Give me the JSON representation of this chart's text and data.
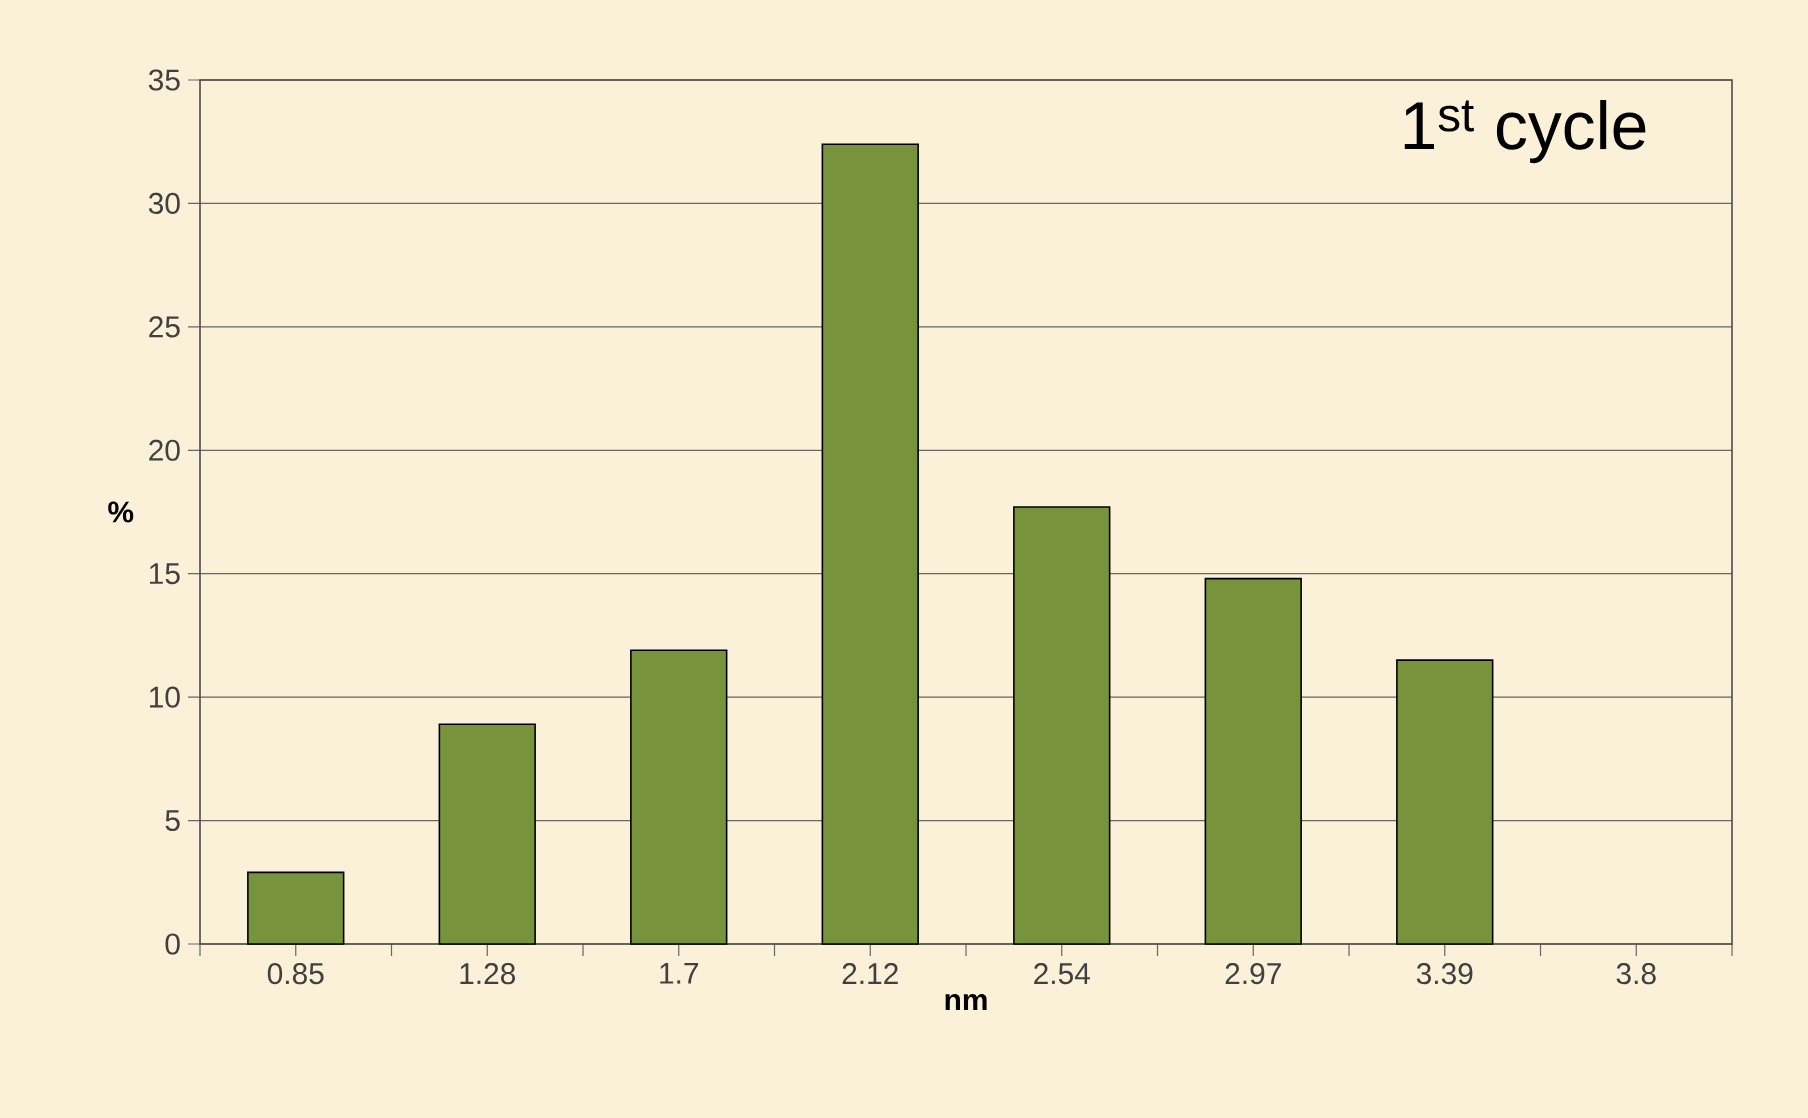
{
  "chart_data": {
    "type": "bar",
    "categories": [
      "0.85",
      "1.28",
      "1.7",
      "2.12",
      "2.54",
      "2.97",
      "3.39",
      "3.8"
    ],
    "values": [
      2.9,
      8.9,
      11.9,
      32.4,
      17.7,
      14.8,
      11.5,
      null
    ],
    "color": "#77933c",
    "xlabel": "nm",
    "ylabel": "%",
    "ylim": [
      0,
      35
    ],
    "yticks": [
      0,
      5,
      10,
      15,
      20,
      25,
      30,
      35
    ],
    "grid": "y",
    "annotations": [
      "1$^{st}$ cycle"
    ]
  }
}
